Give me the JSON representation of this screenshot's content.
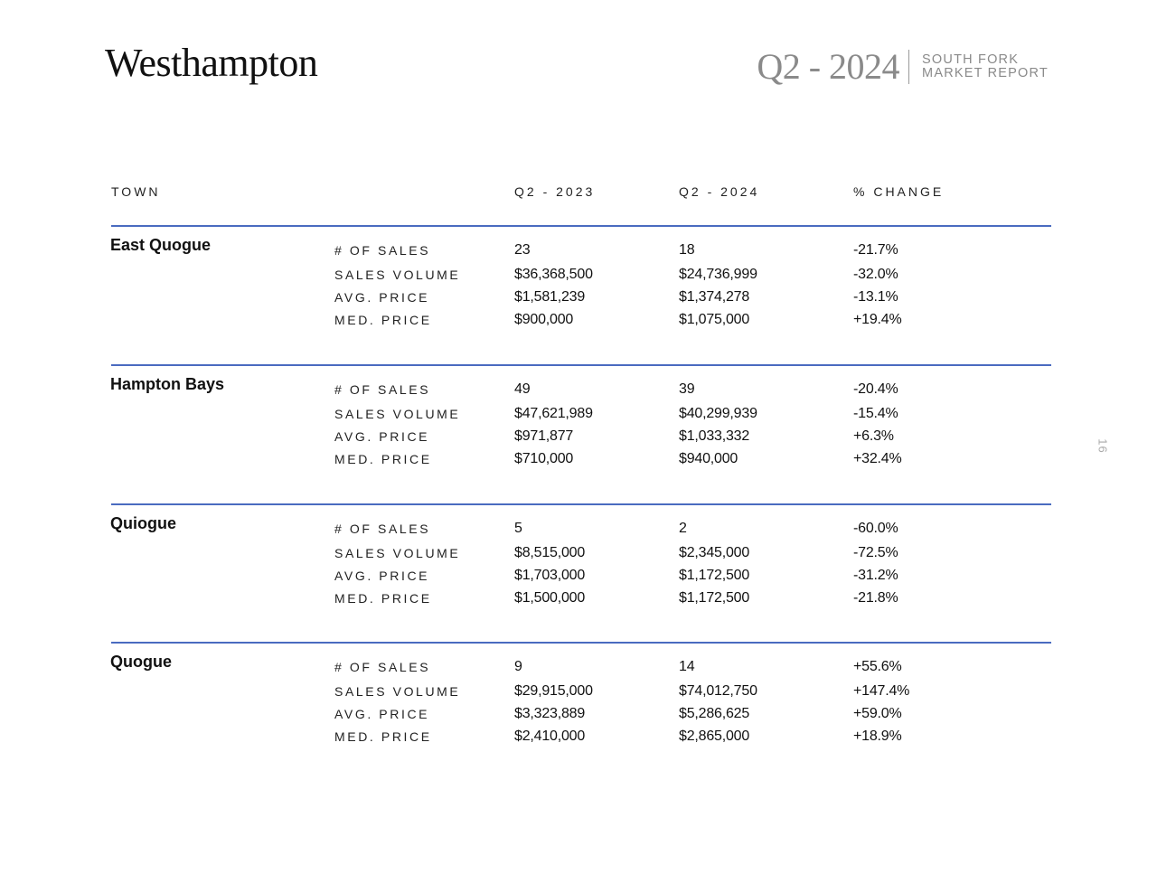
{
  "header": {
    "title": "Westhampton",
    "quarter": "Q2 - 2024",
    "report_line1": "SOUTH FORK",
    "report_line2": "MARKET REPORT"
  },
  "page_number": "16",
  "table": {
    "columns": [
      "TOWN",
      "Q2 - 2023",
      "Q2 - 2024",
      "% CHANGE"
    ],
    "metrics": [
      "# OF SALES",
      "SALES VOLUME",
      "AVG. PRICE",
      "MED. PRICE"
    ],
    "towns": [
      {
        "name": "East Quogue",
        "rows": [
          [
            "23",
            "18",
            "-21.7%"
          ],
          [
            "$36,368,500",
            "$24,736,999",
            "-32.0%"
          ],
          [
            "$1,581,239",
            "$1,374,278",
            "-13.1%"
          ],
          [
            "$900,000",
            "$1,075,000",
            "+19.4%"
          ]
        ]
      },
      {
        "name": "Hampton Bays",
        "rows": [
          [
            "49",
            "39",
            "-20.4%"
          ],
          [
            "$47,621,989",
            "$40,299,939",
            "-15.4%"
          ],
          [
            "$971,877",
            "$1,033,332",
            "+6.3%"
          ],
          [
            "$710,000",
            "$940,000",
            "+32.4%"
          ]
        ]
      },
      {
        "name": "Quiogue",
        "rows": [
          [
            "5",
            "2",
            "-60.0%"
          ],
          [
            "$8,515,000",
            "$2,345,000",
            "-72.5%"
          ],
          [
            "$1,703,000",
            "$1,172,500",
            "-31.2%"
          ],
          [
            "$1,500,000",
            "$1,172,500",
            "-21.8%"
          ]
        ]
      },
      {
        "name": "Quogue",
        "rows": [
          [
            "9",
            "14",
            "+55.6%"
          ],
          [
            "$29,915,000",
            "$74,012,750",
            "+147.4%"
          ],
          [
            "$3,323,889",
            "$5,286,625",
            "+59.0%"
          ],
          [
            "$2,410,000",
            "$2,865,000",
            "+18.9%"
          ]
        ]
      }
    ]
  },
  "colors": {
    "rule": "#4a6bc0",
    "muted": "#8a8a8a"
  }
}
